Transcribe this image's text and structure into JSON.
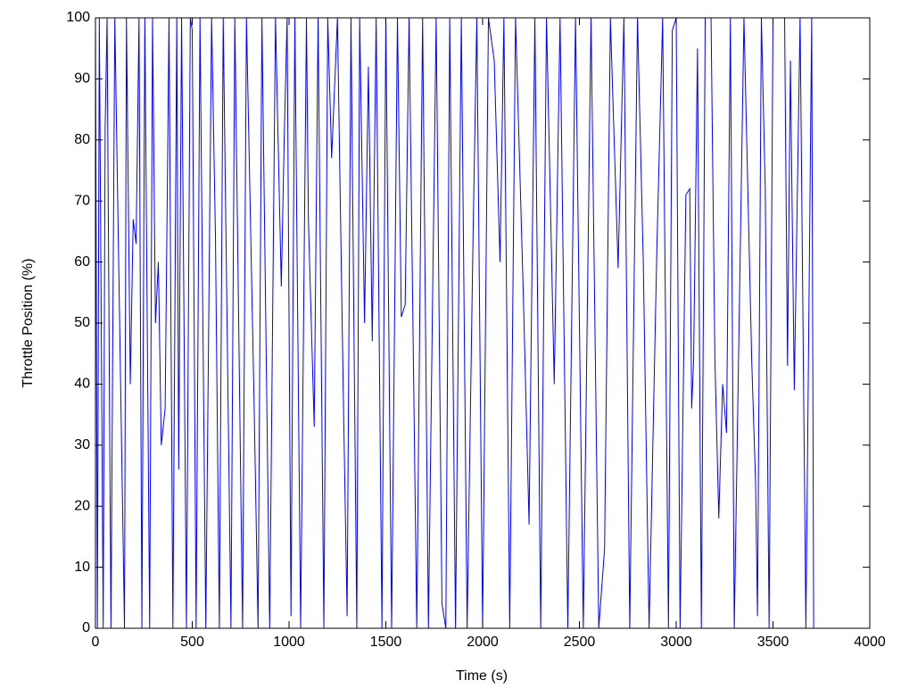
{
  "chart_data": {
    "type": "line",
    "xlabel": "Time (s)",
    "ylabel": "Throttle Position (%)",
    "x": [
      0,
      10,
      20,
      40,
      50,
      60,
      80,
      100,
      150,
      160,
      180,
      195,
      210,
      225,
      240,
      255,
      280,
      295,
      310,
      325,
      340,
      360,
      380,
      400,
      420,
      430,
      445,
      470,
      490,
      500,
      520,
      540,
      570,
      600,
      620,
      640,
      660,
      700,
      720,
      760,
      780,
      820,
      840,
      860,
      900,
      930,
      960,
      975,
      990,
      1010,
      1030,
      1060,
      1090,
      1100,
      1130,
      1150,
      1180,
      1200,
      1220,
      1250,
      1280,
      1300,
      1320,
      1350,
      1365,
      1390,
      1410,
      1430,
      1450,
      1480,
      1500,
      1530,
      1560,
      1580,
      1600,
      1620,
      1660,
      1690,
      1720,
      1760,
      1790,
      1810,
      1830,
      1860,
      1890,
      1920,
      1950,
      1970,
      2000,
      2030,
      2060,
      2090,
      2110,
      2140,
      2170,
      2210,
      2240,
      2270,
      2300,
      2330,
      2370,
      2400,
      2440,
      2480,
      2520,
      2560,
      2600,
      2630,
      2660,
      2700,
      2730,
      2760,
      2800,
      2830,
      2860,
      2900,
      2930,
      2960,
      2980,
      3000,
      3020,
      3050,
      3070,
      3080,
      3090,
      3110,
      3130,
      3150,
      3180,
      3200,
      3220,
      3240,
      3260,
      3280,
      3300,
      3350,
      3390,
      3410,
      3420,
      3440,
      3460,
      3480,
      3500,
      3560,
      3575,
      3590,
      3610,
      3640,
      3670,
      3700,
      3710
    ],
    "values": [
      100,
      0,
      100,
      0,
      82,
      100,
      0,
      100,
      0,
      100,
      40,
      67,
      63,
      100,
      0,
      100,
      0,
      100,
      50,
      60,
      30,
      36,
      100,
      0,
      100,
      26,
      100,
      0,
      100,
      98,
      0,
      100,
      0,
      100,
      64,
      0,
      100,
      0,
      100,
      0,
      100,
      36,
      0,
      100,
      0,
      100,
      56,
      80,
      100,
      2,
      100,
      0,
      100,
      67,
      33,
      100,
      0,
      100,
      77,
      100,
      39,
      2,
      100,
      0,
      100,
      50,
      92,
      47,
      100,
      0,
      100,
      0,
      100,
      51,
      53,
      100,
      0,
      100,
      0,
      100,
      4,
      0,
      100,
      0,
      100,
      0,
      63,
      100,
      0,
      100,
      93,
      60,
      100,
      0,
      100,
      55,
      17,
      100,
      0,
      100,
      40,
      100,
      0,
      100,
      0,
      100,
      0,
      13,
      100,
      59,
      100,
      0,
      100,
      60,
      0,
      62,
      100,
      0,
      98,
      100,
      0,
      71,
      72,
      36,
      44,
      95,
      0,
      100,
      100,
      44,
      18,
      40,
      32,
      100,
      0,
      100,
      44,
      24,
      2,
      100,
      72,
      0,
      100,
      100,
      43,
      93,
      39,
      100,
      0,
      100,
      0
    ],
    "color": "#0000ff",
    "xlim": [
      0,
      4000
    ],
    "xticks": [
      0,
      500,
      1000,
      1500,
      2000,
      2500,
      3000,
      3500,
      4000
    ],
    "ylim": [
      0,
      100
    ],
    "yticks": [
      0,
      10,
      20,
      30,
      40,
      50,
      60,
      70,
      80,
      90,
      100
    ]
  }
}
